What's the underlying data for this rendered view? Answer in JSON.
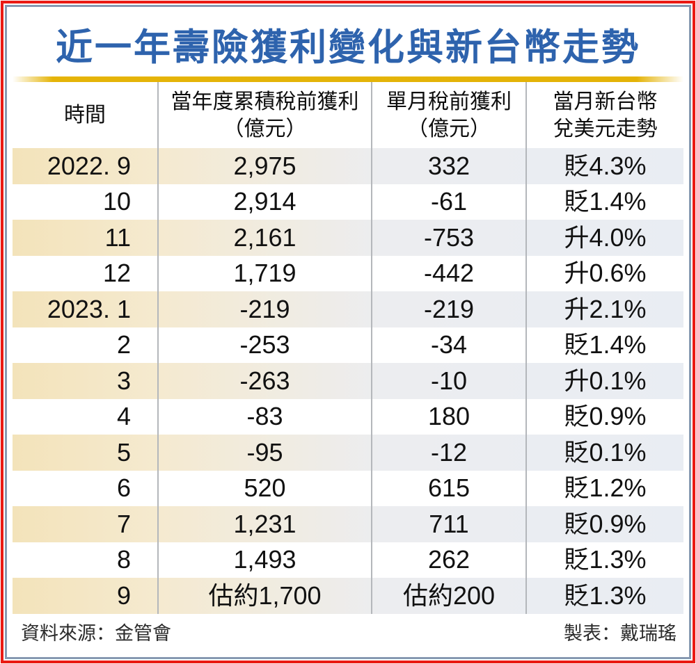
{
  "title": "近一年壽險獲利變化與新台幣走勢",
  "colors": {
    "title_blue": "#2e63ad",
    "outer_border_red": "#ea1a13",
    "inner_border_blue_gray": "#8699b1",
    "gold_rule": "#e4b307",
    "shaded_row_tan": "#f3e3ba",
    "shaded_row_blue_gray": "#e9edf3",
    "column_divider_gray": "#b4b7bb"
  },
  "header": {
    "col1": "時間",
    "col2_line1": "當年度累積稅前獲利",
    "col2_line2": "（億元）",
    "col3_line1": "單月稅前獲利",
    "col3_line2": "（億元）",
    "col4_line1": "當月新台幣",
    "col4_line2": "兌美元走勢"
  },
  "table": {
    "rows": [
      {
        "time": "2022. 9",
        "cumulative": "2,975",
        "monthly": "332",
        "trend": "貶4.3%"
      },
      {
        "time": "10",
        "cumulative": "2,914",
        "monthly": "-61",
        "trend": "貶1.4%"
      },
      {
        "time": "11",
        "cumulative": "2,161",
        "monthly": "-753",
        "trend": "升4.0%"
      },
      {
        "time": "12",
        "cumulative": "1,719",
        "monthly": "-442",
        "trend": "升0.6%"
      },
      {
        "time": "2023. 1",
        "cumulative": "-219",
        "monthly": "-219",
        "trend": "升2.1%"
      },
      {
        "time": "2",
        "cumulative": "-253",
        "monthly": "-34",
        "trend": "貶1.4%"
      },
      {
        "time": "3",
        "cumulative": "-263",
        "monthly": "-10",
        "trend": "升0.1%"
      },
      {
        "time": "4",
        "cumulative": "-83",
        "monthly": "180",
        "trend": "貶0.9%"
      },
      {
        "time": "5",
        "cumulative": "-95",
        "monthly": "-12",
        "trend": "貶0.1%"
      },
      {
        "time": "6",
        "cumulative": "520",
        "monthly": "615",
        "trend": "貶1.2%"
      },
      {
        "time": "7",
        "cumulative": "1,231",
        "monthly": "711",
        "trend": "貶0.9%"
      },
      {
        "time": "8",
        "cumulative": "1,493",
        "monthly": "262",
        "trend": "貶1.3%"
      },
      {
        "time": "9",
        "cumulative": "估約1,700",
        "monthly": "估約200",
        "trend": "貶1.3%"
      }
    ]
  },
  "footer": {
    "source": "資料來源：金管會",
    "credit": "製表：戴瑞瑤"
  },
  "chart_data": {
    "type": "table",
    "title": "近一年壽險獲利變化與新台幣走勢",
    "columns": [
      "時間",
      "當年度累積稅前獲利（億元）",
      "單月稅前獲利（億元）",
      "當月新台幣兌美元走勢"
    ],
    "rows": [
      [
        "2022. 9",
        "2,975",
        "332",
        "貶4.3%"
      ],
      [
        "10",
        "2,914",
        "-61",
        "貶1.4%"
      ],
      [
        "11",
        "2,161",
        "-753",
        "升4.0%"
      ],
      [
        "12",
        "1,719",
        "-442",
        "升0.6%"
      ],
      [
        "2023. 1",
        "-219",
        "-219",
        "升2.1%"
      ],
      [
        "2",
        "-253",
        "-34",
        "貶1.4%"
      ],
      [
        "3",
        "-263",
        "-10",
        "升0.1%"
      ],
      [
        "4",
        "-83",
        "180",
        "貶0.9%"
      ],
      [
        "5",
        "-95",
        "-12",
        "貶0.1%"
      ],
      [
        "6",
        "520",
        "615",
        "貶1.2%"
      ],
      [
        "7",
        "1,231",
        "711",
        "貶0.9%"
      ],
      [
        "8",
        "1,493",
        "262",
        "貶1.3%"
      ],
      [
        "9",
        "估約1,700",
        "估約200",
        "貶1.3%"
      ]
    ]
  }
}
